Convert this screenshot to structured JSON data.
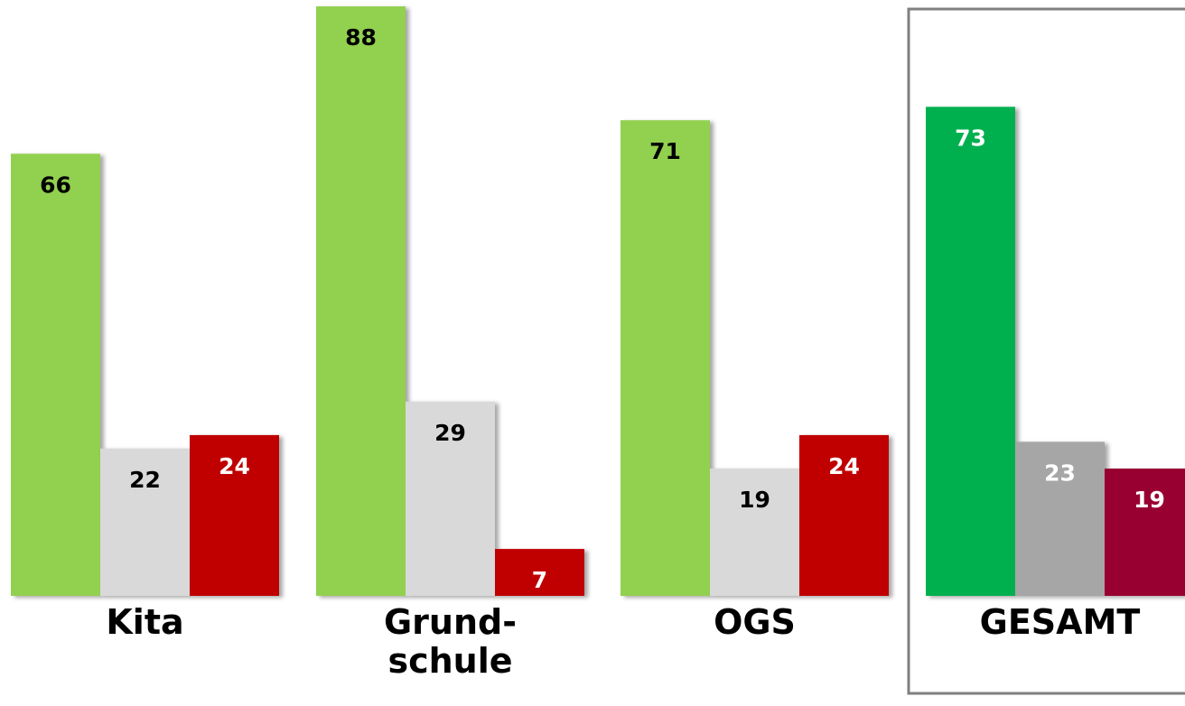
{
  "chart_data": {
    "type": "bar",
    "categories": [
      "Kita",
      "Grund-\nschule",
      "OGS",
      "GESAMT"
    ],
    "values": [
      [
        66,
        22,
        24
      ],
      [
        88,
        29,
        7
      ],
      [
        71,
        19,
        24
      ],
      [
        73,
        23,
        19
      ]
    ],
    "ylim": [
      0,
      90
    ],
    "grid": false,
    "legend": "none",
    "highlighted_category": "GESAMT",
    "colors": {
      "default": [
        "#92d050",
        "#d9d9d9",
        "#c00000"
      ],
      "highlighted": [
        "#00b050",
        "#a6a6a6",
        "#990033"
      ],
      "frame": "#7f7f7f"
    },
    "label_colors": {
      "default": [
        "#000000",
        "#000000",
        "#ffffff"
      ],
      "highlighted": [
        "#ffffff",
        "#ffffff",
        "#ffffff"
      ]
    }
  }
}
